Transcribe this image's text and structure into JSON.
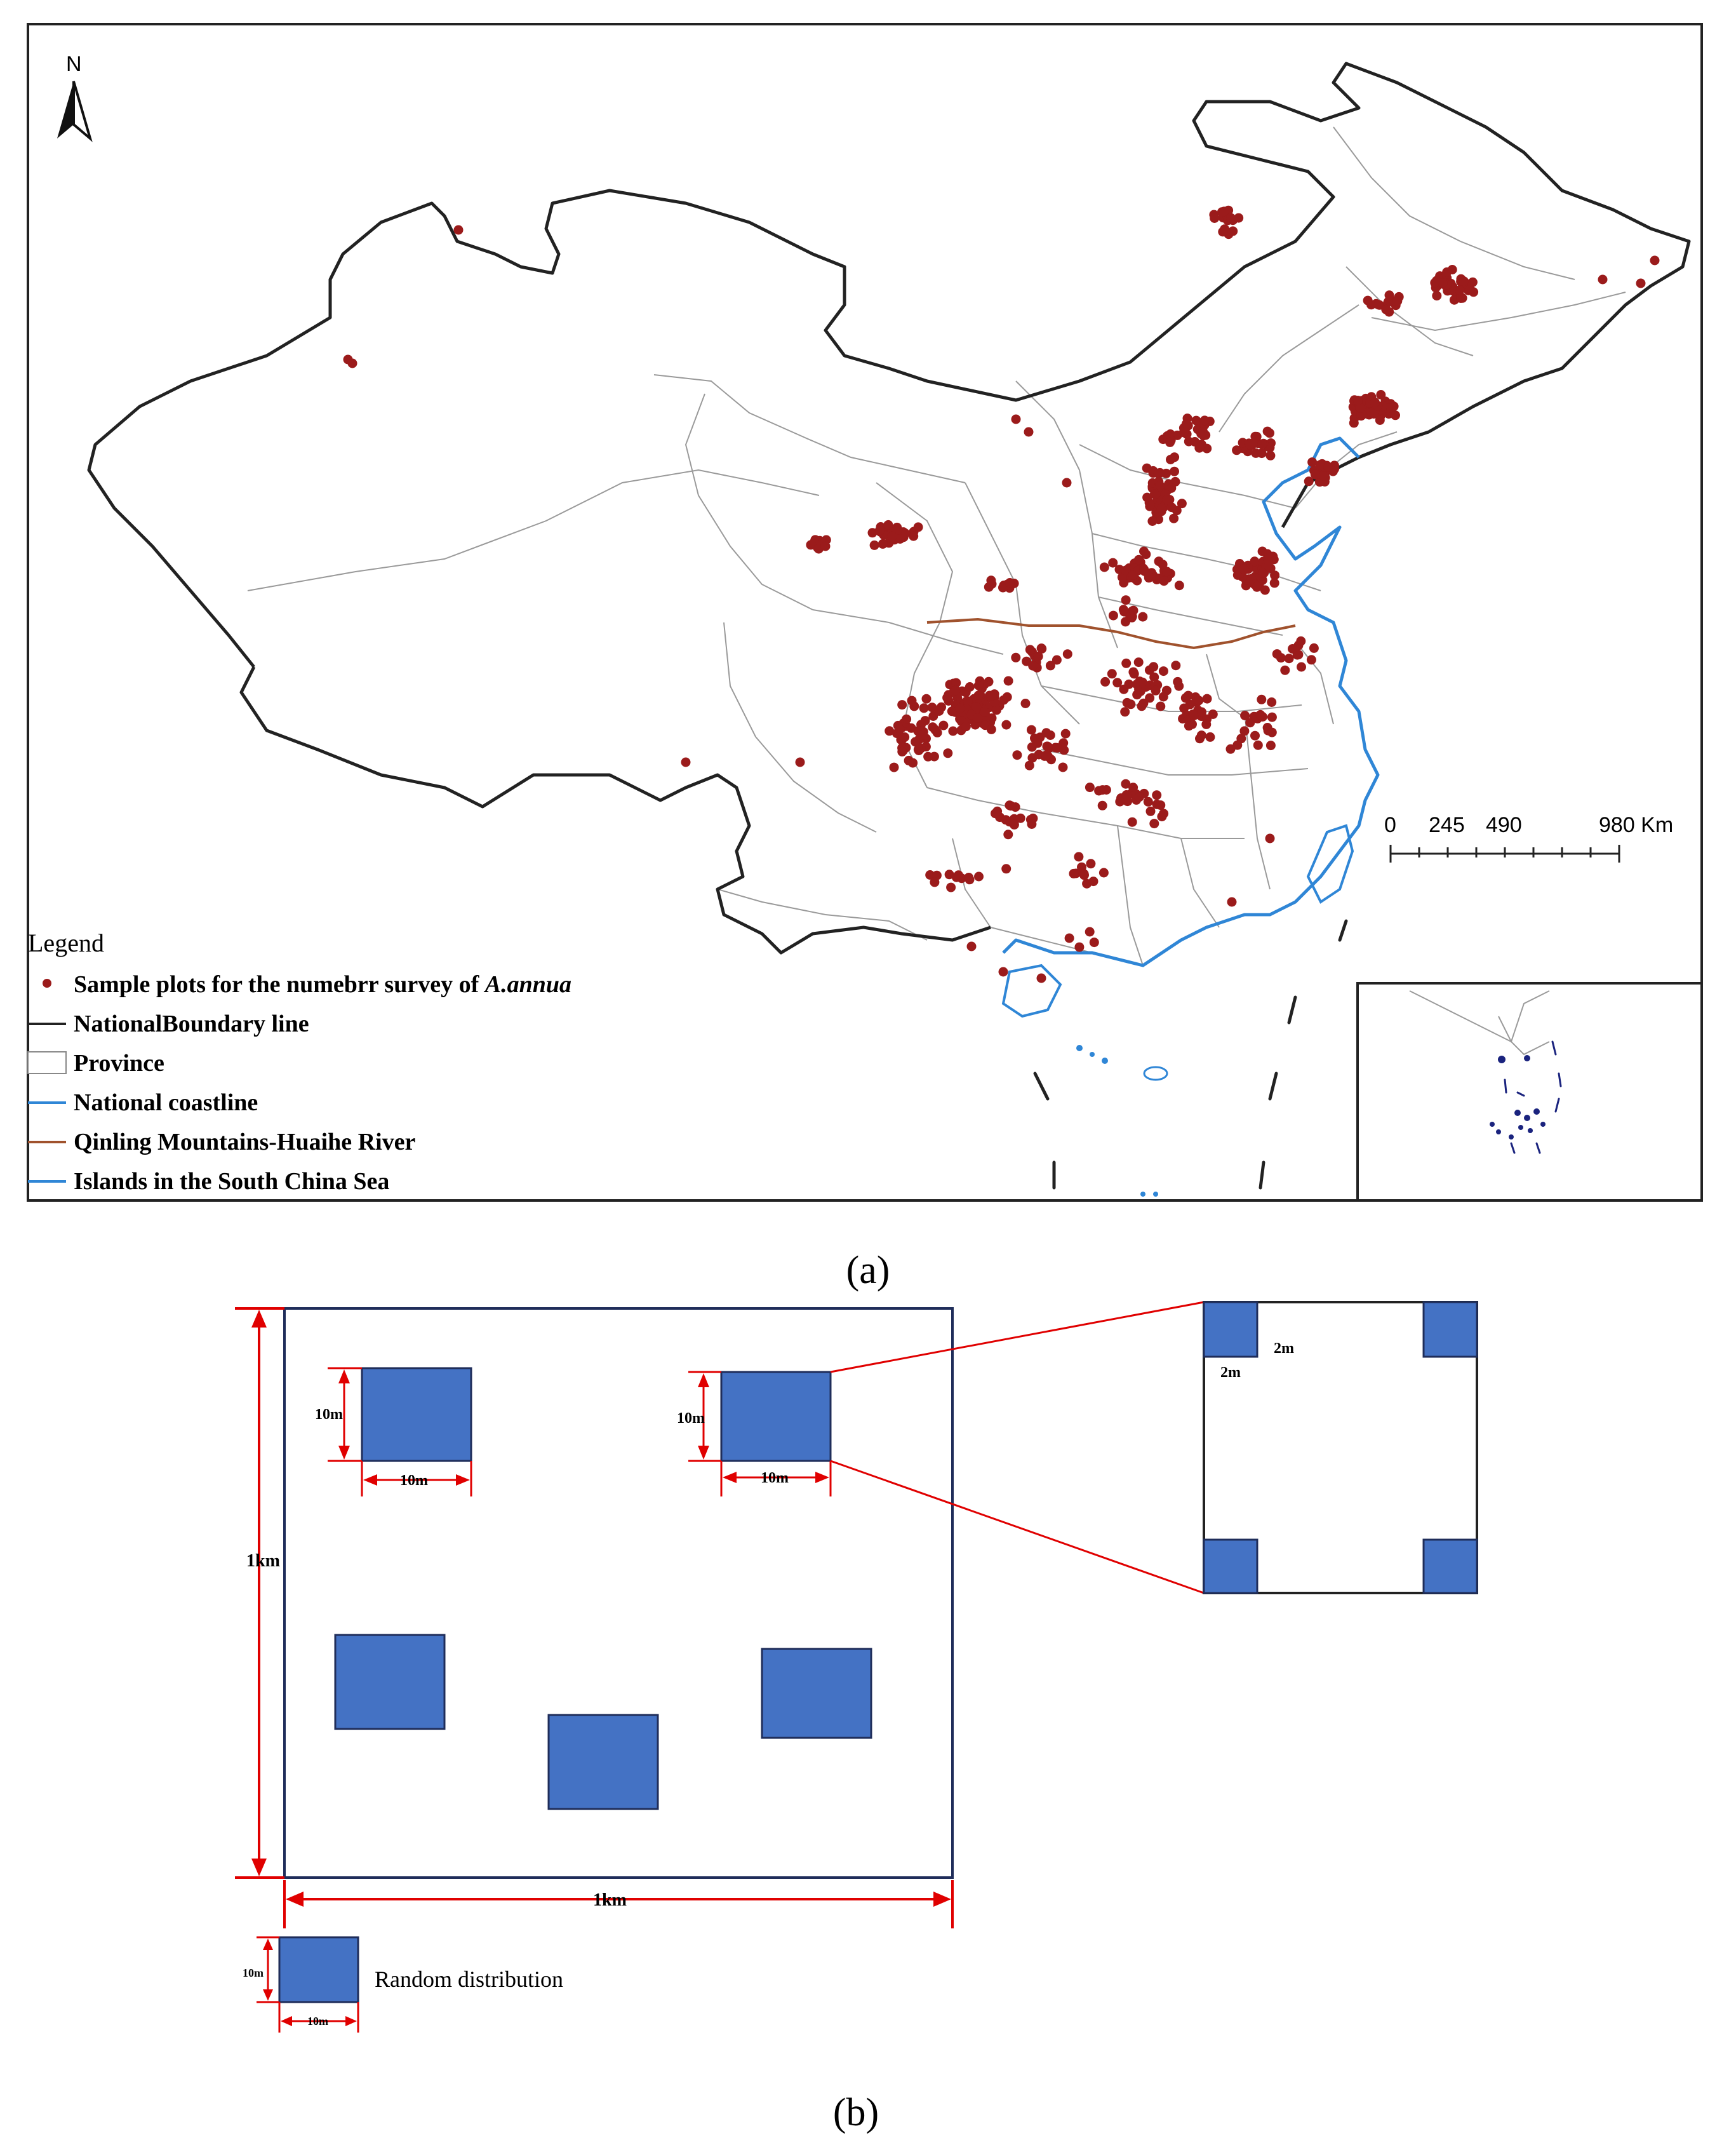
{
  "panel_a": {
    "north_label": "N",
    "scale_bar": {
      "labels": [
        "0",
        "245",
        "490",
        "980 Km"
      ]
    },
    "legend": {
      "title": "Legend",
      "items": [
        {
          "label": "Sample plots for the numebrr survey of",
          "italic_suffix": "A.annua",
          "symbol": "dot",
          "color": "#9b1b1b"
        },
        {
          "label": "NationalBoundary line",
          "symbol": "line",
          "color": "#222222"
        },
        {
          "label": "Province",
          "symbol": "box",
          "color": "#888888"
        },
        {
          "label": "National coastline",
          "symbol": "line",
          "color": "#2f86d6"
        },
        {
          "label": "Qinling Mountains-Huaihe River",
          "symbol": "line",
          "color": "#a0522d"
        },
        {
          "label": "Islands in the South China Sea",
          "symbol": "line",
          "color": "#2f86d6"
        }
      ]
    },
    "caption": "(a)"
  },
  "panel_b": {
    "dim_1km_vertical": "1km",
    "dim_1km_horizontal": "1km",
    "dim_10m": "10m",
    "dim_2m": "2m",
    "legend_label": "Random distribution",
    "caption": "(b)"
  },
  "colors": {
    "plot_dot": "#9b1b1b",
    "quadrat_fill": "#4472c4",
    "quadrat_stroke": "#1f2d5a",
    "dimension_red": "#e00000",
    "boundary": "#222222",
    "coast": "#2f86d6",
    "qinling": "#a0522d"
  }
}
